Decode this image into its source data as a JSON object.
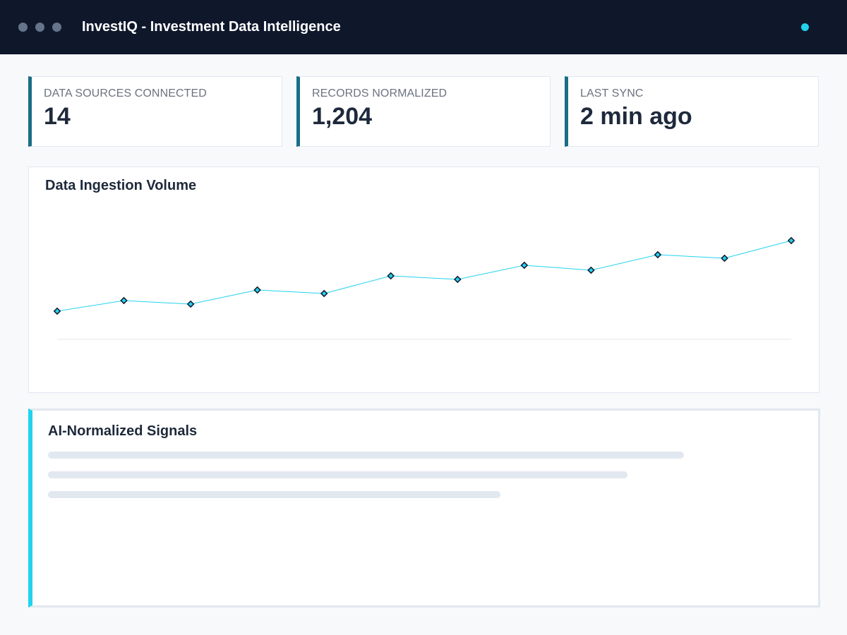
{
  "window": {
    "title": "InvestIQ - Investment Data Intelligence",
    "control_dots": [
      "dot",
      "dot",
      "dot"
    ],
    "status_color": "#22d3ee"
  },
  "stats": [
    {
      "label": "DATA SOURCES CONNECTED",
      "value": "14"
    },
    {
      "label": "RECORDS NORMALIZED",
      "value": "1,204"
    },
    {
      "label": "LAST SYNC",
      "value": "2 min ago"
    }
  ],
  "chart": {
    "title": "Data Ingestion Volume"
  },
  "chart_data": {
    "type": "line",
    "title": "Data Ingestion Volume",
    "xlabel": "",
    "ylabel": "",
    "grid": false,
    "legend": "none",
    "ylim": [
      0,
      14
    ],
    "x": [
      1,
      2,
      3,
      4,
      5,
      6,
      7,
      8,
      9,
      10,
      11,
      12
    ],
    "series": [
      {
        "values": [
          4.0,
          5.5,
          5.0,
          7.0,
          6.5,
          9.0,
          8.5,
          10.5,
          9.8,
          12.0,
          11.5,
          14.0
        ],
        "color": "#22d3ee"
      }
    ]
  },
  "signals": {
    "title": "AI-Normalized Signals",
    "placeholder_lines": 3
  },
  "colors": {
    "titlebar": "#0f172b",
    "accent": "#22d3ee",
    "card_border": "#1a6d86",
    "text": "#1e293b"
  }
}
